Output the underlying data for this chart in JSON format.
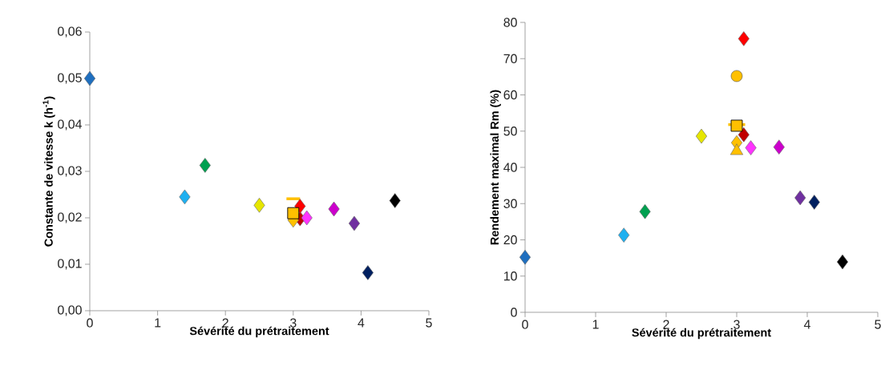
{
  "chart_data": [
    {
      "type": "scatter",
      "xlabel": "Sévérité du prétraitement",
      "ylabel": "Constante de vitesse k (h$^{-1}$)",
      "xlim": [
        0,
        5
      ],
      "xticks": [
        0,
        1,
        2,
        3,
        4,
        5
      ],
      "ylim": [
        0,
        0.06
      ],
      "yticks": [
        {
          "value": 0,
          "label": "0,00"
        },
        {
          "value": 0.01,
          "label": "0,01"
        },
        {
          "value": 0.02,
          "label": "0,02"
        },
        {
          "value": 0.03,
          "label": "0,03"
        },
        {
          "value": 0.04,
          "label": "0,04"
        },
        {
          "value": 0.05,
          "label": "0,05"
        },
        {
          "value": 0.06,
          "label": "0,06"
        }
      ],
      "grid": false,
      "series": [
        {
          "color": "#1f6fbf",
          "marker": "diamond",
          "x": [
            0
          ],
          "values": [
            0.05
          ]
        },
        {
          "color": "#1fb0f0",
          "marker": "diamond",
          "x": [
            1.4
          ],
          "values": [
            0.0245
          ]
        },
        {
          "color": "#00a050",
          "marker": "diamond",
          "x": [
            1.7
          ],
          "values": [
            0.0313
          ]
        },
        {
          "color": "#e6e600",
          "marker": "diamond",
          "x": [
            2.5
          ],
          "values": [
            0.0227
          ]
        },
        {
          "color": "#c00000",
          "marker": "diamond",
          "x": [
            3.1
          ],
          "values": [
            0.0198
          ]
        },
        {
          "color": "#ff0000",
          "marker": "diamond",
          "x": [
            3.1
          ],
          "values": [
            0.0225
          ]
        },
        {
          "color": "#ffc000",
          "marker": "diamond",
          "x": [
            3.0
          ],
          "values": [
            0.0195
          ]
        },
        {
          "color": "#ffc000",
          "marker": "square",
          "x": [
            3.0
          ],
          "values": [
            0.021
          ]
        },
        {
          "color": "#ffc000",
          "type": "line",
          "marker": "none",
          "x": [
            2.9,
            3.1
          ],
          "values": [
            0.0241,
            0.0241
          ]
        },
        {
          "color": "#ff33ff",
          "marker": "diamond",
          "x": [
            3.2
          ],
          "values": [
            0.02
          ]
        },
        {
          "color": "#cc00cc",
          "marker": "diamond",
          "x": [
            3.6
          ],
          "values": [
            0.0219
          ]
        },
        {
          "color": "#7030a0",
          "marker": "diamond",
          "x": [
            3.9
          ],
          "values": [
            0.0188
          ]
        },
        {
          "color": "#002060",
          "marker": "diamond",
          "x": [
            4.1
          ],
          "values": [
            0.0082
          ]
        },
        {
          "color": "#000000",
          "marker": "diamond",
          "x": [
            4.5
          ],
          "values": [
            0.0237
          ]
        }
      ]
    },
    {
      "type": "scatter",
      "xlabel": "Sévérité du prétraitement",
      "ylabel": "Rendement maximal Rm (%)",
      "xlim": [
        0,
        5
      ],
      "xticks": [
        0,
        1,
        2,
        3,
        4,
        5
      ],
      "ylim": [
        0,
        80
      ],
      "yticks": [
        0,
        10,
        20,
        30,
        40,
        50,
        60,
        70,
        80
      ],
      "grid": false,
      "series": [
        {
          "color": "#1f6fbf",
          "marker": "diamond",
          "x": [
            0
          ],
          "values": [
            15.2
          ]
        },
        {
          "color": "#1fb0f0",
          "marker": "diamond",
          "x": [
            1.4
          ],
          "values": [
            21.3
          ]
        },
        {
          "color": "#00a050",
          "marker": "diamond",
          "x": [
            1.7
          ],
          "values": [
            27.8
          ]
        },
        {
          "color": "#e6e600",
          "marker": "diamond",
          "x": [
            2.5
          ],
          "values": [
            48.6
          ]
        },
        {
          "color": "#c00000",
          "marker": "diamond",
          "x": [
            3.1
          ],
          "values": [
            49.0
          ]
        },
        {
          "color": "#ff0000",
          "marker": "diamond",
          "x": [
            3.1
          ],
          "values": [
            75.5
          ]
        },
        {
          "color": "#ffc000",
          "marker": "circle",
          "x": [
            3.0
          ],
          "values": [
            65.2
          ]
        },
        {
          "color": "#ffc000",
          "marker": "diamond",
          "x": [
            3.0
          ],
          "values": [
            46.8
          ]
        },
        {
          "color": "#ffc000",
          "marker": "triangle",
          "x": [
            3.0
          ],
          "values": [
            44.5
          ]
        },
        {
          "color": "#ffc000",
          "marker": "square",
          "x": [
            3.0
          ],
          "values": [
            51.5
          ]
        },
        {
          "color": "#ffc000",
          "type": "line",
          "marker": "none",
          "x": [
            2.88,
            3.12
          ],
          "values": [
            51.8,
            51.8
          ]
        },
        {
          "color": "#ff33ff",
          "marker": "diamond",
          "x": [
            3.2
          ],
          "values": [
            45.4
          ]
        },
        {
          "color": "#cc00cc",
          "marker": "diamond",
          "x": [
            3.6
          ],
          "values": [
            45.6
          ]
        },
        {
          "color": "#7030a0",
          "marker": "diamond",
          "x": [
            3.9
          ],
          "values": [
            31.6
          ]
        },
        {
          "color": "#002060",
          "marker": "diamond",
          "x": [
            4.1
          ],
          "values": [
            30.4
          ]
        },
        {
          "color": "#000000",
          "marker": "diamond",
          "x": [
            4.5
          ],
          "values": [
            13.9
          ]
        }
      ]
    }
  ]
}
